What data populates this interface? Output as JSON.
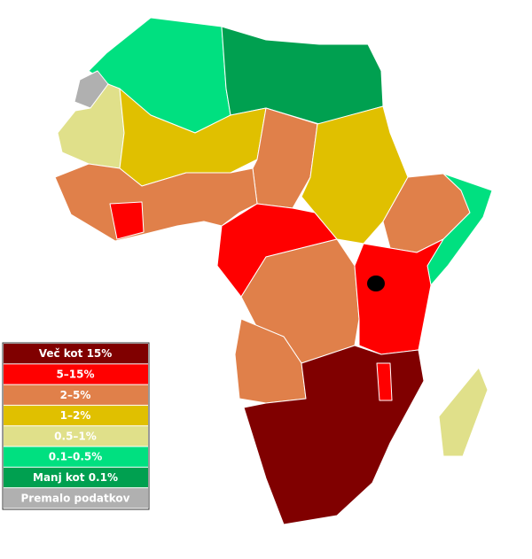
{
  "legend": [
    {
      "label": "Več kot 15%",
      "color": "#800000"
    },
    {
      "label": "5–15%",
      "color": "#ff0000"
    },
    {
      "label": "2–5%",
      "color": "#e0804a"
    },
    {
      "label": "1–2%",
      "color": "#e0c000"
    },
    {
      "label": "0.5–1%",
      "color": "#e0e08a"
    },
    {
      "label": "0.1–0.5%",
      "color": "#00e080"
    },
    {
      "label": "Manj kot 0.1%",
      "color": "#00a050"
    },
    {
      "label": "Premalo podatkov",
      "color": "#b0b0b0"
    }
  ]
}
